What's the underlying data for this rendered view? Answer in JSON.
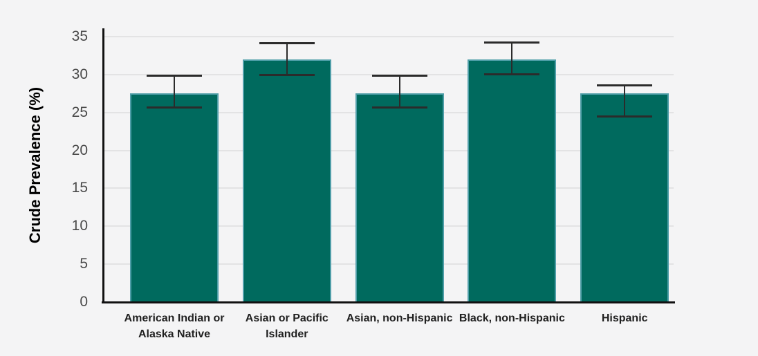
{
  "chart_data": {
    "type": "bar",
    "title": "",
    "xlabel": "",
    "ylabel": "Crude Prevalence (%)",
    "ylim": [
      0,
      35
    ],
    "yticks": [
      0,
      5,
      10,
      15,
      20,
      25,
      30,
      35
    ],
    "grid": true,
    "legend_position": "none",
    "categories": [
      "American Indian or Alaska Native",
      "Asian or Pacific Islander",
      "Asian, non-Hispanic",
      "Black, non-Hispanic",
      "Hispanic"
    ],
    "category_label_lines": [
      [
        "American Indian or",
        "Alaska Native"
      ],
      [
        "Asian or Pacific",
        "Islander"
      ],
      [
        "Asian, non-Hispanic"
      ],
      [
        "Black, non-Hispanic"
      ],
      [
        "Hispanic"
      ]
    ],
    "values": [
      27.5,
      32.0,
      27.5,
      32.0,
      27.5
    ],
    "error_bars": {
      "low": [
        25.6,
        29.9,
        25.6,
        30.0,
        24.4
      ],
      "high": [
        29.9,
        34.2,
        29.9,
        34.3,
        28.6
      ]
    },
    "colors": {
      "background": "#f4f4f5",
      "bar_fill": "#006a5e",
      "bar_edge": "#4f9ea8",
      "error_bar": "#2b2b2b",
      "axis_line": "#111111",
      "gridline": "#e3e3e4",
      "tick_label": "#4a4a4a",
      "category_label": "#1f1f1f",
      "axis_title": "#1a1a1a"
    }
  }
}
